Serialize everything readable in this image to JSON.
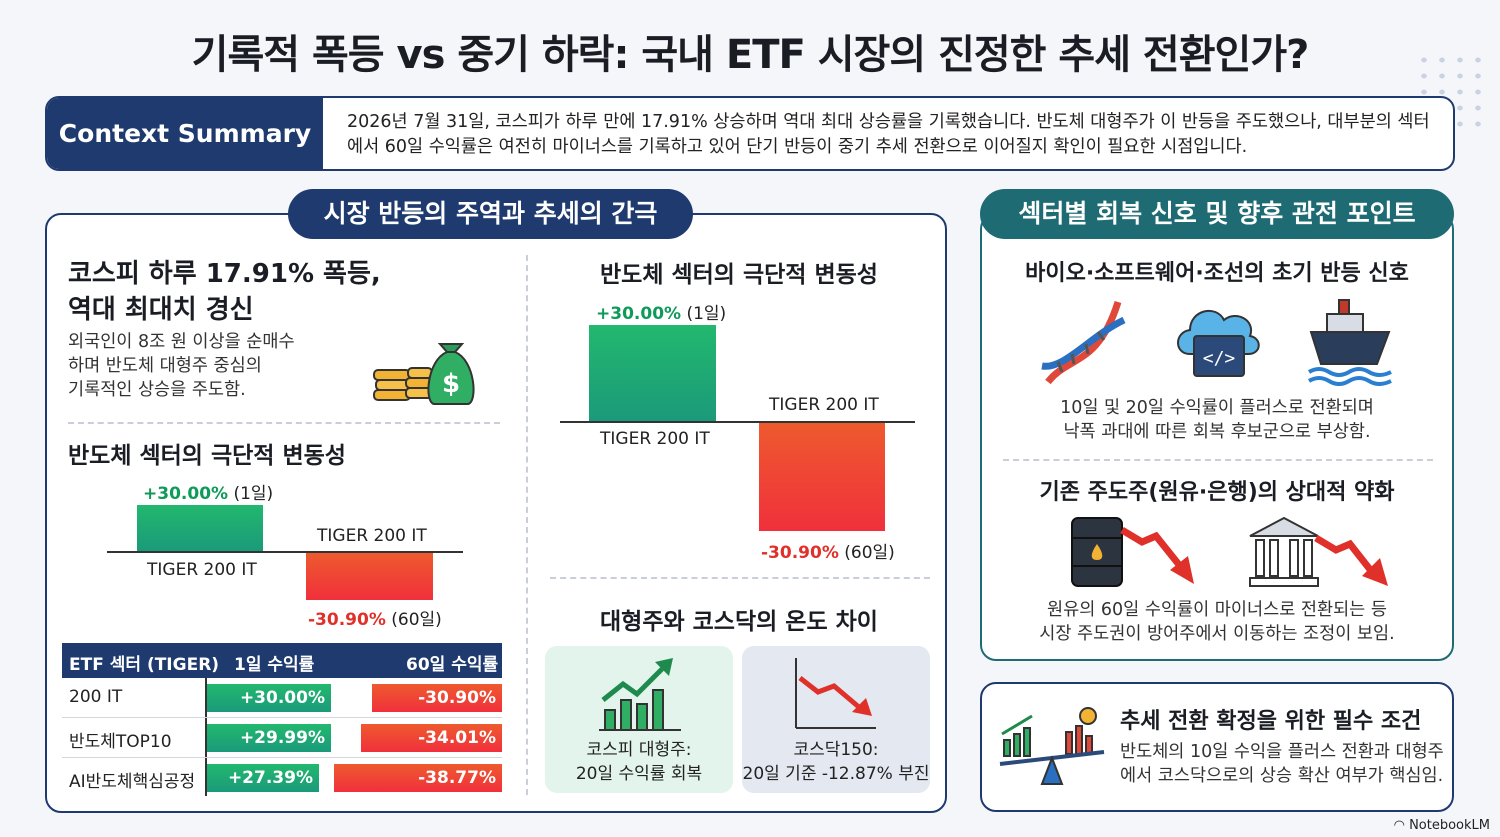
{
  "title": "기록적 폭등 vs 중기 하락: 국내 ETF 시장의 진정한 추세 전환인가?",
  "context": {
    "label": "Context Summary",
    "text": "2026년 7월 31일, 코스피가 하루 만에 17.91% 상승하며 역대 최대 상승률을 기록했습니다. 반도체 대형주가 이 반등을 주도했으나, 대부분의 섹터에서 60일 수익률은 여전히 마이너스를 기록하고 있어 단기 반등이 중기 추세 전환으로 이어질지 확인이 필요한 시점입니다."
  },
  "left_panel": {
    "pill": "시장 반등의 주역과 추세의 간극",
    "kospi": {
      "heading_line1": "코스피 하루 17.91% 폭등,",
      "heading_line2": "역대 최대치 경신",
      "body_line1": "외국인이 8조 원 이상을 순매수",
      "body_line2": "하며 반도체 대형주 중심의",
      "body_line3": "기록적인 상승을 주도함."
    },
    "semi_small": {
      "heading": "반도체 섹터의 극단적 변동성",
      "pos_value": "+30.00%",
      "pos_period": "(1일)",
      "pos_label": "TIGER 200 IT",
      "neg_label": "TIGER 200 IT",
      "neg_value": "-30.90%",
      "neg_period": "(60일)"
    },
    "semi_large": {
      "heading": "반도체 섹터의 극단적 변동성",
      "pos_value": "+30.00%",
      "pos_period": "(1일)",
      "pos_label": "TIGER 200 IT",
      "neg_label": "TIGER 200 IT",
      "neg_value": "-30.90%",
      "neg_period": "(60일)"
    },
    "table": {
      "headers": [
        "ETF 섹터 (TIGER)",
        "1일 수익률",
        "60일 수익률"
      ],
      "rows": [
        {
          "name": "200 IT",
          "d1": "+30.00%",
          "d60": "-30.90%"
        },
        {
          "name": "반도체TOP10",
          "d1": "+29.99%",
          "d60": "-34.01%"
        },
        {
          "name": "AI반도체핵심공정",
          "d1": "+27.39%",
          "d60": "-38.77%"
        }
      ]
    },
    "temp": {
      "heading": "대형주와 코스닥의 온도 차이",
      "kospi_line1": "코스피 대형주:",
      "kospi_line2": "20일 수익률 회복",
      "kosdaq_line1": "코스닥150:",
      "kosdaq_line2": "20일 기준 -12.87% 부진"
    }
  },
  "right_panel": {
    "pill": "섹터별 회복 신호 및 향후 관전 포인트",
    "early": {
      "heading": "바이오·소프트웨어·조선의 초기 반등 신호",
      "body_line1": "10일 및 20일 수익률이 플러스로 전환되며",
      "body_line2": "낙폭 과대에 따른 회복 후보군으로 부상함."
    },
    "weak": {
      "heading": "기존 주도주(원유·은행)의 상대적 약화",
      "body_line1": "원유의 60일 수익률이 마이너스로 전환되는 등",
      "body_line2": "시장 주도권이 방어주에서 이동하는 조정이 보임."
    }
  },
  "bottom_panel": {
    "heading": "추세 전환 확정을 위한 필수 조건",
    "body_line1": "반도체의 10일 수익을 플러스 전환과 대형주",
    "body_line2": "에서 코스닥으로의 상승 확산 여부가 핵심임."
  },
  "footer": "NotebookLM",
  "icons": [
    "money-bag-icon",
    "dna-icon",
    "cloud-code-icon",
    "ship-icon",
    "oil-barrel-icon",
    "bank-icon",
    "growth-chart-icon",
    "decline-chart-icon",
    "balance-scale-icon"
  ],
  "colors": {
    "navy": "#1e3a6e",
    "teal": "#1e6b74",
    "green": "#0e9a59",
    "red": "#e0302a"
  }
}
